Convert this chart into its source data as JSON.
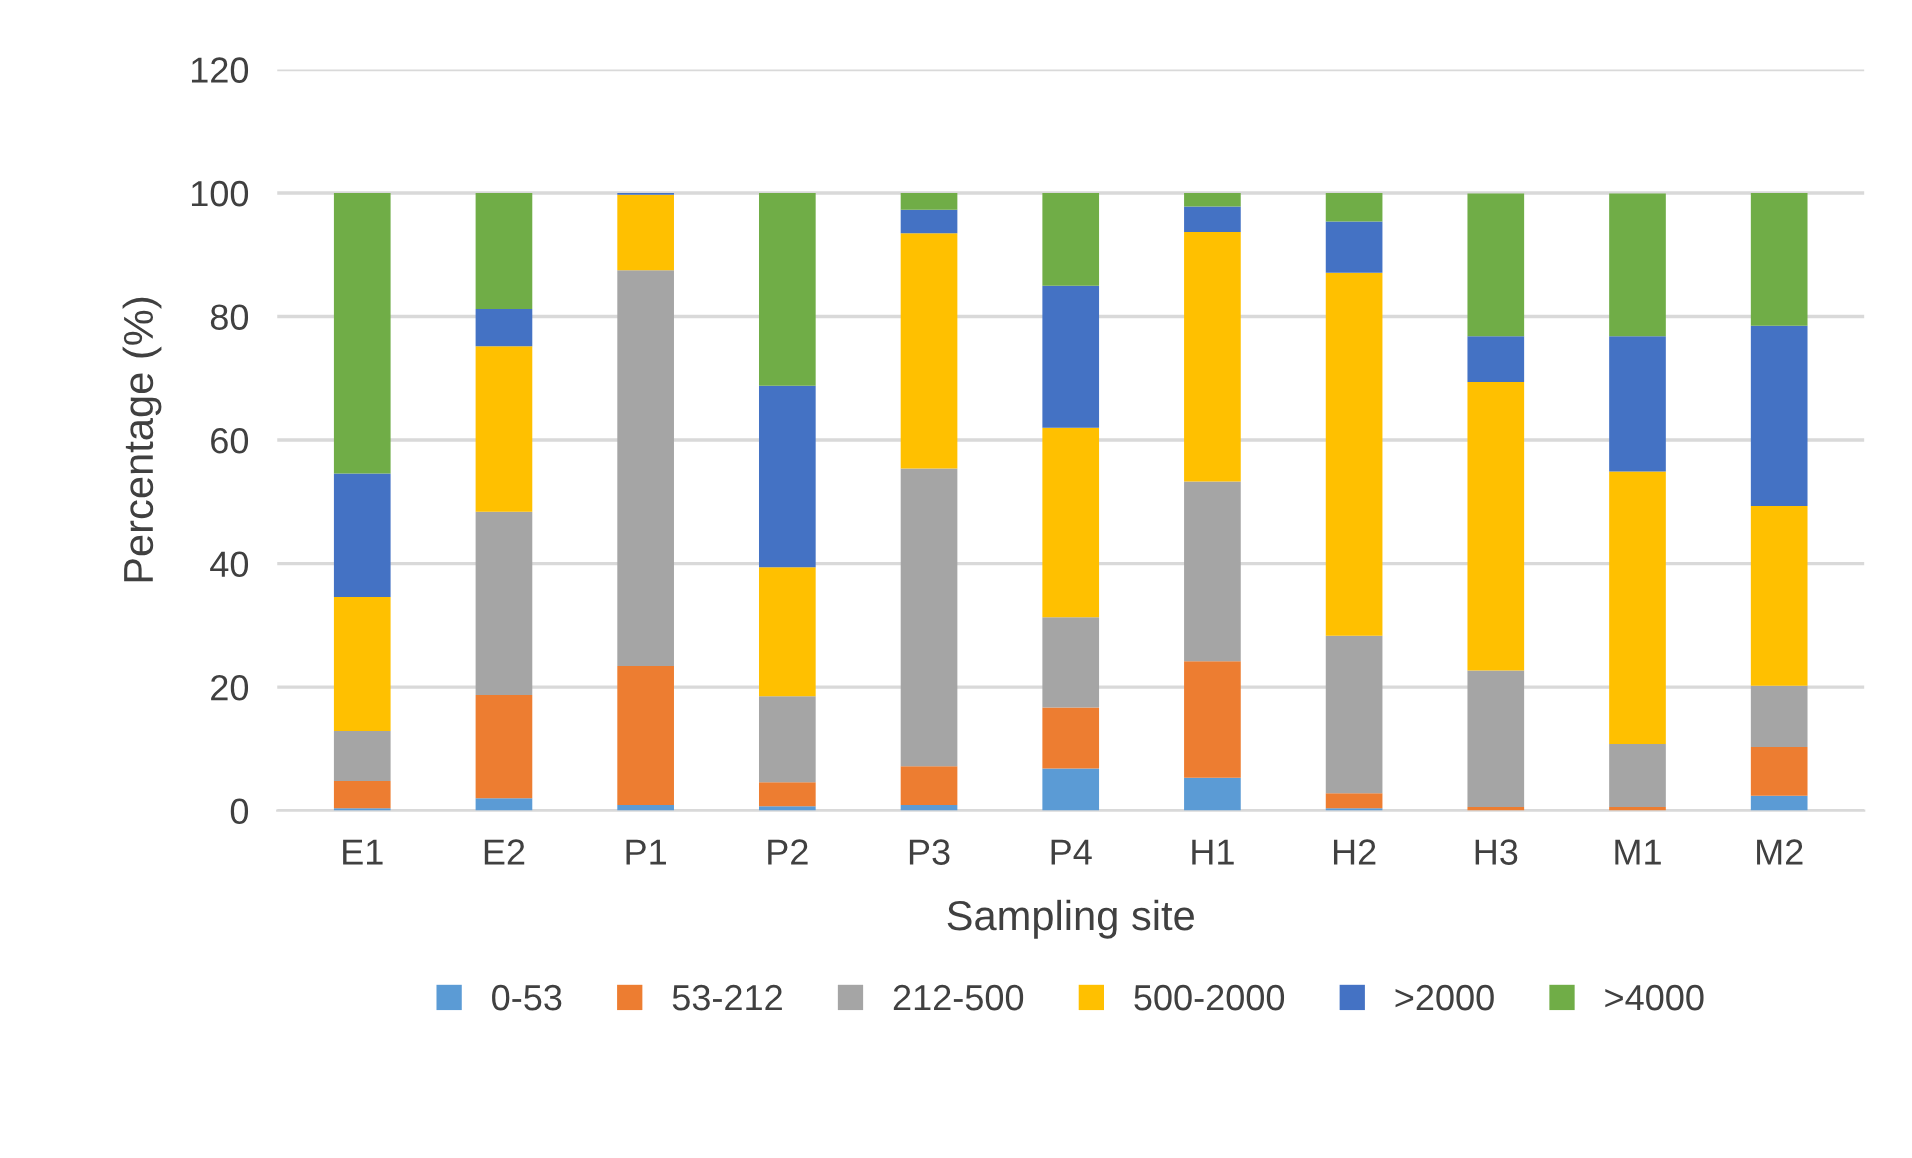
{
  "chart_data": {
    "type": "bar",
    "stacked": true,
    "xlabel": "Sampling site",
    "ylabel": "Percentage (%)",
    "categories": [
      "E1",
      "E2",
      "P1",
      "P2",
      "P3",
      "P4",
      "H1",
      "H2",
      "H3",
      "M1",
      "M2"
    ],
    "series": [
      {
        "name": "0-53",
        "color": "#5b9bd5",
        "values": [
          0.4,
          2.0,
          0.9,
          0.7,
          0.9,
          6.8,
          5.3,
          0.4,
          null,
          null,
          2.4
        ]
      },
      {
        "name": "53-212",
        "color": "#ed7d31",
        "values": [
          4.4,
          16.7,
          22.5,
          3.9,
          6.3,
          9.9,
          18.9,
          2.4,
          0.6,
          0.6,
          7.9
        ]
      },
      {
        "name": "212-500",
        "color": "#a5a5a5",
        "values": [
          8.1,
          29.7,
          64.1,
          13.9,
          48.2,
          14.6,
          29.1,
          25.5,
          22.1,
          10.2,
          9.9
        ]
      },
      {
        "name": "500-2000",
        "color": "#ffc000",
        "values": [
          21.7,
          26.8,
          12.2,
          20.9,
          38.1,
          30.7,
          40.4,
          58.8,
          46.7,
          44.1,
          29.1
        ]
      },
      {
        "name": ">2000",
        "color": "#4472c4",
        "values": [
          20.0,
          6.0,
          0.3,
          29.4,
          3.8,
          23.0,
          4.1,
          8.3,
          7.4,
          21.9,
          29.2
        ]
      },
      {
        "name": ">4000",
        "color": "#70ad47",
        "values": [
          45.4,
          18.8,
          0,
          31.2,
          2.7,
          15.0,
          2.2,
          4.6,
          23.1,
          23.1,
          21.5
        ]
      }
    ],
    "ylim": [
      0,
      120
    ],
    "yticks": [
      0,
      20,
      40,
      60,
      80,
      100,
      120
    ],
    "grid": "y",
    "legend": "bottom"
  }
}
